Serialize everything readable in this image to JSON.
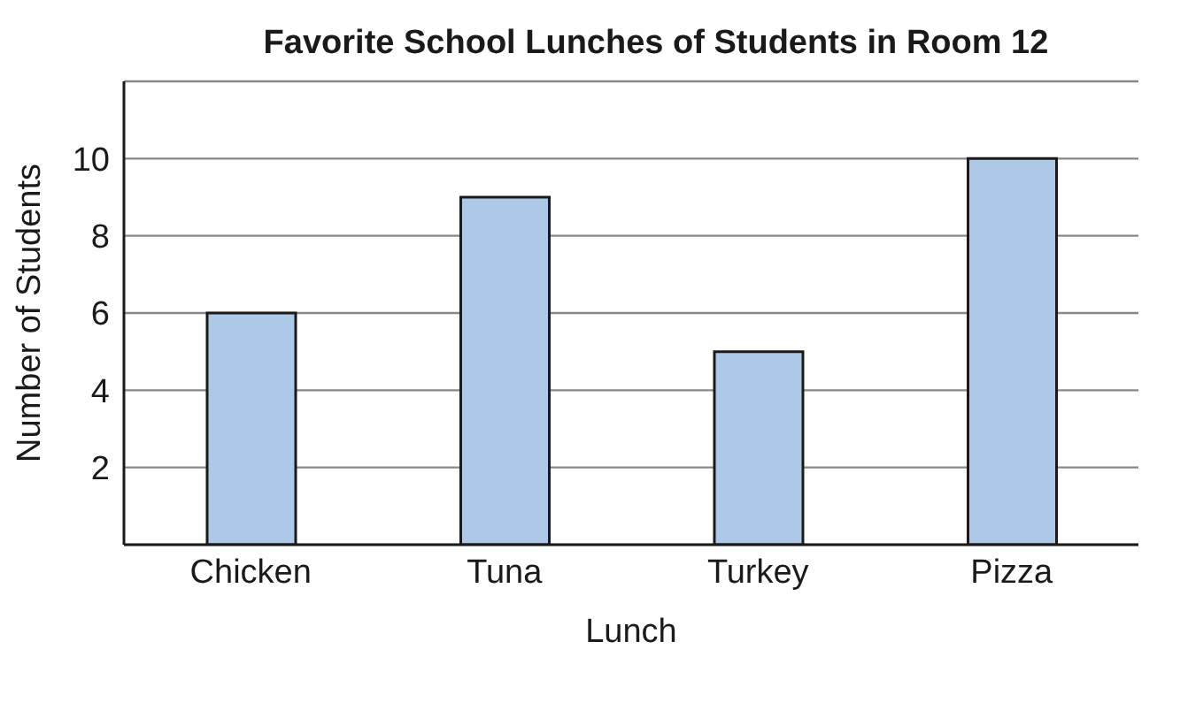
{
  "chart_data": {
    "type": "bar",
    "title": "Favorite School Lunches of Students in Room 12",
    "xlabel": "Lunch",
    "ylabel": "Number of Students",
    "categories": [
      "Chicken",
      "Tuna",
      "Turkey",
      "Pizza"
    ],
    "values": [
      6,
      9,
      5,
      10
    ],
    "color": "#aec9e8",
    "ylim": [
      0,
      12
    ],
    "yticks": [
      2,
      4,
      6,
      8,
      10
    ],
    "grid": "y"
  }
}
